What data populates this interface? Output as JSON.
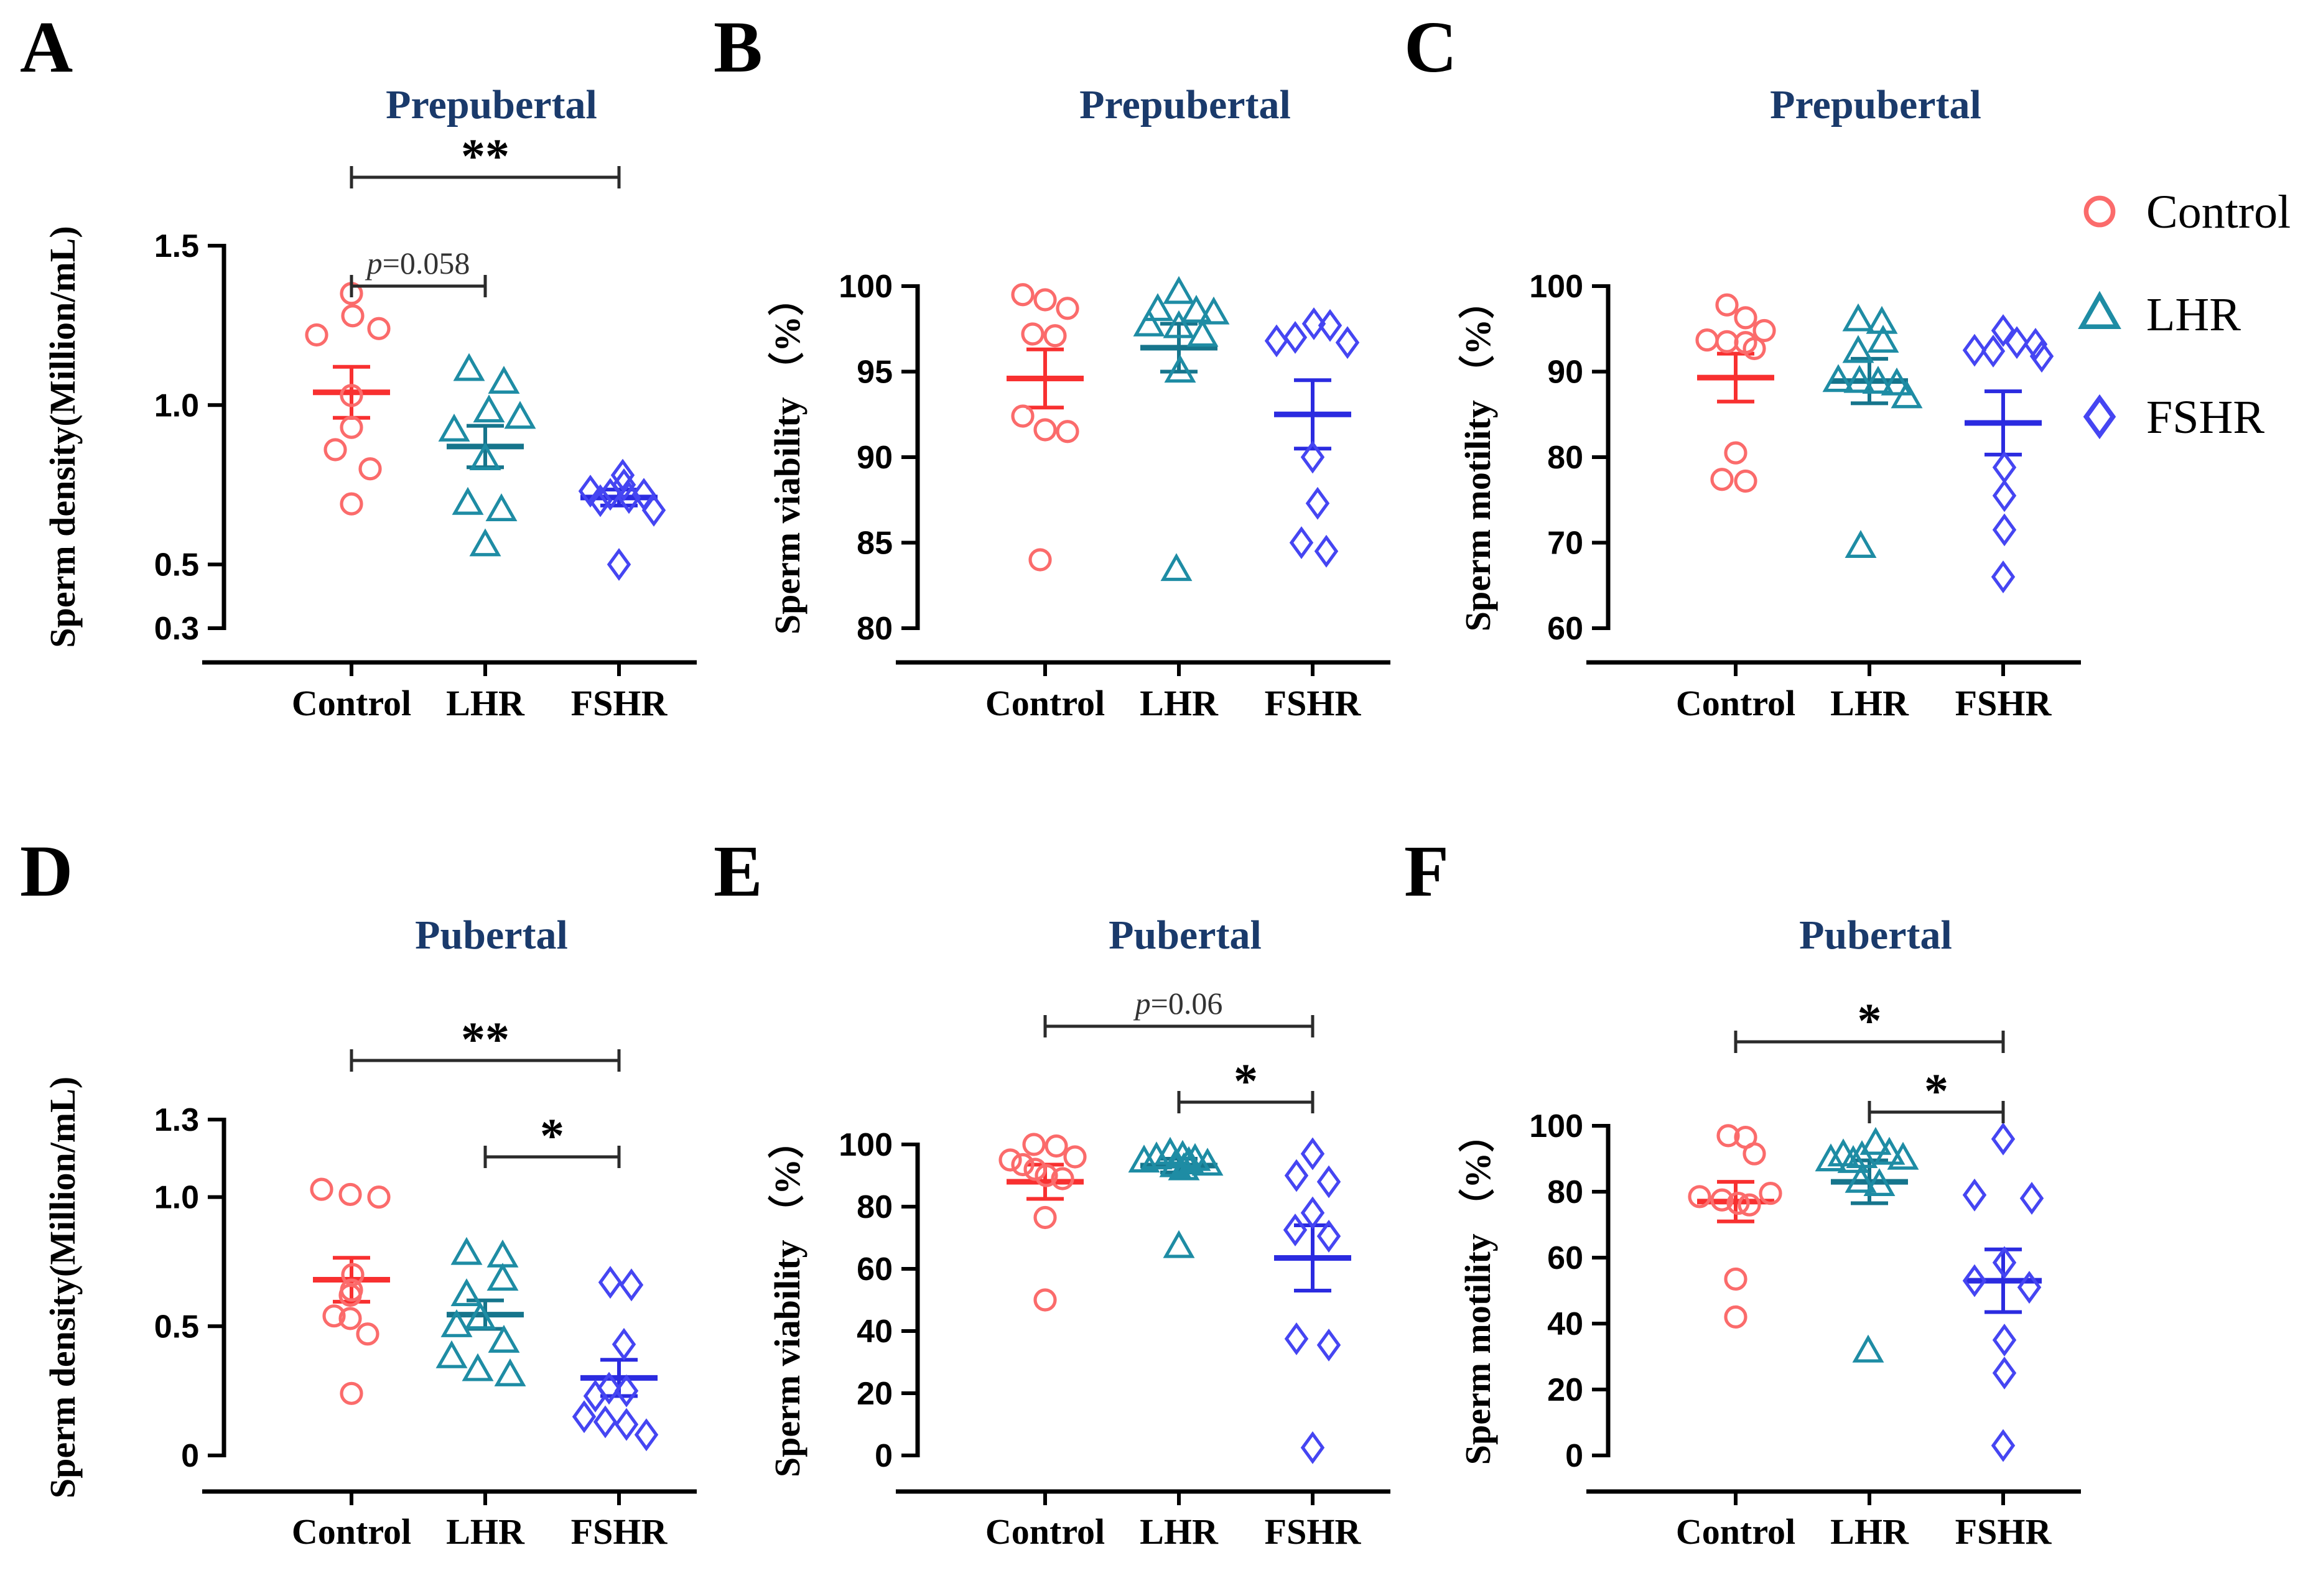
{
  "colors": {
    "control_marker": "#FB6B6B",
    "control_mean": "#F83030",
    "lhr_marker": "#1E8CA4",
    "lhr_mean": "#16758C",
    "fshr_marker": "#4545F2",
    "fshr_mean": "#2B2BE0",
    "title_navy": "#1A3A6B",
    "axis_black": "#000000",
    "bracket_gray": "#2B2B2B"
  },
  "legend": {
    "items": [
      {
        "label": "Control",
        "marker": "circle",
        "color": "#FB6B6B"
      },
      {
        "label": "LHR",
        "marker": "triangle",
        "color": "#1E8CA4"
      },
      {
        "label": "FSHR",
        "marker": "diamond",
        "color": "#4545F2"
      }
    ]
  },
  "chart_data": [
    {
      "id": "A",
      "type": "scatter",
      "panel_letter": "A",
      "title": "Prepubertal",
      "ylabel": "Sperm density(Million/mL)",
      "categories": [
        "Control",
        "LHR",
        "FSHR"
      ],
      "ylim": [
        0.3,
        1.5
      ],
      "yticks": [
        "1.5",
        "1.0",
        "0.5",
        "0.3"
      ],
      "series": [
        {
          "name": "Control",
          "marker": "circle",
          "color": "#FB6B6B",
          "mean_color": "#F83030",
          "mean": 1.04,
          "sem": 0.08,
          "points": [
            [
              1.35,
              0
            ],
            [
              1.28,
              2
            ],
            [
              1.24,
              44
            ],
            [
              1.22,
              -56
            ],
            [
              1.03,
              0
            ],
            [
              0.93,
              0
            ],
            [
              0.86,
              -26
            ],
            [
              0.8,
              30
            ],
            [
              0.69,
              0
            ]
          ]
        },
        {
          "name": "LHR",
          "marker": "triangle",
          "color": "#1E8CA4",
          "mean_color": "#16758C",
          "mean": 0.87,
          "sem": 0.065,
          "points": [
            [
              1.11,
              -26
            ],
            [
              1.07,
              30
            ],
            [
              0.98,
              6
            ],
            [
              0.96,
              56
            ],
            [
              0.92,
              -50
            ],
            [
              0.83,
              0
            ],
            [
              0.69,
              -28
            ],
            [
              0.67,
              26
            ],
            [
              0.56,
              0
            ]
          ]
        },
        {
          "name": "FSHR",
          "marker": "diamond",
          "color": "#4545F2",
          "mean_color": "#2B2BE0",
          "mean": 0.71,
          "sem": 0.025,
          "points": [
            [
              0.78,
              6
            ],
            [
              0.75,
              8
            ],
            [
              0.73,
              -46
            ],
            [
              0.72,
              -14
            ],
            [
              0.72,
              40
            ],
            [
              0.71,
              16
            ],
            [
              0.7,
              -30
            ],
            [
              0.67,
              56
            ],
            [
              0.5,
              0
            ]
          ]
        }
      ],
      "significance": [
        {
          "pair": [
            0,
            2
          ],
          "label": "**",
          "lineY": 285,
          "labelY": 277
        },
        {
          "pair": [
            0,
            1
          ],
          "label": "p=0.058",
          "lineY": 460,
          "labelY": 440
        }
      ]
    },
    {
      "id": "B",
      "type": "scatter",
      "panel_letter": "B",
      "title": "Prepubertal",
      "ylabel": "Sperm viability （%）",
      "categories": [
        "Control",
        "LHR",
        "FSHR"
      ],
      "ylim": [
        80,
        100
      ],
      "yticks": [
        "100",
        "95",
        "90",
        "85",
        "80"
      ],
      "series": [
        {
          "name": "Control",
          "marker": "circle",
          "color": "#FB6B6B",
          "mean_color": "#F83030",
          "mean": 94.6,
          "sem": 1.7,
          "points": [
            [
              99.5,
              -36
            ],
            [
              99.2,
              0
            ],
            [
              98.7,
              36
            ],
            [
              97.2,
              -20
            ],
            [
              97.1,
              16
            ],
            [
              92.4,
              -36
            ],
            [
              91.6,
              0
            ],
            [
              91.5,
              36
            ],
            [
              84.0,
              -8
            ]
          ]
        },
        {
          "name": "LHR",
          "marker": "triangle",
          "color": "#1E8CA4",
          "mean_color": "#16758C",
          "mean": 96.4,
          "sem": 1.4,
          "points": [
            [
              99.6,
              0
            ],
            [
              98.6,
              -34
            ],
            [
              98.5,
              28
            ],
            [
              98.4,
              56
            ],
            [
              97.7,
              -48
            ],
            [
              97.6,
              0
            ],
            [
              97.1,
              38
            ],
            [
              95.0,
              2
            ],
            [
              83.4,
              -4
            ]
          ]
        },
        {
          "name": "FSHR",
          "marker": "diamond",
          "color": "#4545F2",
          "mean_color": "#2B2BE0",
          "mean": 92.5,
          "sem": 2.0,
          "points": [
            [
              97.8,
              2
            ],
            [
              97.7,
              28
            ],
            [
              97.0,
              -28
            ],
            [
              96.8,
              -58
            ],
            [
              96.7,
              56
            ],
            [
              90.0,
              0
            ],
            [
              87.3,
              8
            ],
            [
              85.0,
              -18
            ],
            [
              84.5,
              22
            ]
          ]
        }
      ],
      "significance": []
    },
    {
      "id": "C",
      "type": "scatter",
      "panel_letter": "C",
      "title": "Prepubertal",
      "ylabel": "Sperm motility （%）",
      "categories": [
        "Control",
        "LHR",
        "FSHR"
      ],
      "ylim": [
        60,
        100
      ],
      "yticks": [
        "100",
        "90",
        "80",
        "70",
        "60"
      ],
      "series": [
        {
          "name": "Control",
          "marker": "circle",
          "color": "#FB6B6B",
          "mean_color": "#F83030",
          "mean": 89.3,
          "sem": 2.8,
          "points": [
            [
              97.8,
              -14
            ],
            [
              96.3,
              16
            ],
            [
              94.8,
              46
            ],
            [
              93.7,
              -46
            ],
            [
              93.5,
              -14
            ],
            [
              93.4,
              16
            ],
            [
              92.7,
              30
            ],
            [
              80.5,
              0
            ],
            [
              77.4,
              -22
            ],
            [
              77.2,
              16
            ]
          ]
        },
        {
          "name": "LHR",
          "marker": "triangle",
          "color": "#1E8CA4",
          "mean_color": "#16758C",
          "mean": 88.9,
          "sem": 2.6,
          "points": [
            [
              96.0,
              -18
            ],
            [
              95.7,
              20
            ],
            [
              93.5,
              22
            ],
            [
              92.3,
              -18
            ],
            [
              88.9,
              -50
            ],
            [
              88.8,
              -16
            ],
            [
              88.7,
              14
            ],
            [
              88.5,
              44
            ],
            [
              87.0,
              60
            ],
            [
              69.5,
              -14
            ]
          ]
        },
        {
          "name": "FSHR",
          "marker": "diamond",
          "color": "#4545F2",
          "mean_color": "#2B2BE0",
          "mean": 84.0,
          "sem": 3.7,
          "points": [
            [
              94.8,
              0
            ],
            [
              93.4,
              22
            ],
            [
              93.2,
              52
            ],
            [
              92.5,
              -46
            ],
            [
              92.4,
              -16
            ],
            [
              91.8,
              62
            ],
            [
              78.8,
              2
            ],
            [
              75.5,
              2
            ],
            [
              71.5,
              2
            ],
            [
              66.0,
              0
            ]
          ]
        }
      ],
      "significance": []
    },
    {
      "id": "D",
      "type": "scatter",
      "panel_letter": "D",
      "title": "Pubertal",
      "ylabel": "Sperm density(Million/mL)",
      "categories": [
        "Control",
        "LHR",
        "FSHR"
      ],
      "ylim": [
        0,
        1.3
      ],
      "yticks": [
        "1.3",
        "1.0",
        "0.5",
        "0"
      ],
      "series": [
        {
          "name": "Control",
          "marker": "circle",
          "color": "#FB6B6B",
          "mean_color": "#F83030",
          "mean": 0.68,
          "sem": 0.085,
          "points": [
            [
              1.03,
              -48
            ],
            [
              1.01,
              -2
            ],
            [
              1.0,
              44
            ],
            [
              0.7,
              2
            ],
            [
              0.64,
              0
            ],
            [
              0.62,
              -2
            ],
            [
              0.54,
              -28
            ],
            [
              0.53,
              -2
            ],
            [
              0.47,
              26
            ],
            [
              0.24,
              0
            ]
          ]
        },
        {
          "name": "LHR",
          "marker": "triangle",
          "color": "#1E8CA4",
          "mean_color": "#16758C",
          "mean": 0.545,
          "sem": 0.055,
          "points": [
            [
              0.78,
              -30
            ],
            [
              0.77,
              28
            ],
            [
              0.68,
              28
            ],
            [
              0.62,
              -30
            ],
            [
              0.53,
              -8
            ],
            [
              0.5,
              -46
            ],
            [
              0.44,
              30
            ],
            [
              0.38,
              -54
            ],
            [
              0.33,
              -12
            ],
            [
              0.31,
              40
            ]
          ]
        },
        {
          "name": "FSHR",
          "marker": "diamond",
          "color": "#4545F2",
          "mean_color": "#2B2BE0",
          "mean": 0.3,
          "sem": 0.07,
          "points": [
            [
              0.67,
              -14
            ],
            [
              0.66,
              20
            ],
            [
              0.43,
              8
            ],
            [
              0.26,
              -16
            ],
            [
              0.25,
              12
            ],
            [
              0.23,
              -38
            ],
            [
              0.15,
              -56
            ],
            [
              0.13,
              -22
            ],
            [
              0.12,
              12
            ],
            [
              0.08,
              44
            ]
          ]
        }
      ],
      "significance": [
        {
          "pair": [
            0,
            2
          ],
          "label": "**",
          "lineY": 375,
          "labelY": 367
        },
        {
          "pair": [
            1,
            2
          ],
          "label": "*",
          "lineY": 530,
          "labelY": 522
        }
      ]
    },
    {
      "id": "E",
      "type": "scatter",
      "panel_letter": "E",
      "title": "Pubertal",
      "ylabel": "Sperm viability （%）",
      "categories": [
        "Control",
        "LHR",
        "FSHR"
      ],
      "ylim": [
        0,
        100
      ],
      "yticks": [
        "100",
        "80",
        "60",
        "40",
        "20",
        "0"
      ],
      "series": [
        {
          "name": "Control",
          "marker": "circle",
          "color": "#FB6B6B",
          "mean_color": "#F83030",
          "mean": 88.0,
          "sem": 5.5,
          "points": [
            [
              100,
              -18
            ],
            [
              99.5,
              18
            ],
            [
              96,
              48
            ],
            [
              95,
              -56
            ],
            [
              93.5,
              -36
            ],
            [
              92,
              -16
            ],
            [
              90,
              2
            ],
            [
              89,
              28
            ],
            [
              76.5,
              0
            ],
            [
              50,
              0
            ]
          ]
        },
        {
          "name": "LHR",
          "marker": "triangle",
          "color": "#1E8CA4",
          "mean_color": "#16758C",
          "mean": 93.2,
          "sem": 2.2,
          "points": [
            [
              97,
              -14
            ],
            [
              96,
              6
            ],
            [
              95.5,
              -36
            ],
            [
              95,
              26
            ],
            [
              94.5,
              -56
            ],
            [
              94,
              16
            ],
            [
              93.5,
              46
            ],
            [
              93,
              -6
            ],
            [
              92,
              8
            ],
            [
              67,
              0
            ]
          ]
        },
        {
          "name": "FSHR",
          "marker": "diamond",
          "color": "#4545F2",
          "mean_color": "#2B2BE0",
          "mean": 63.5,
          "sem": 10.5,
          "points": [
            [
              97,
              0
            ],
            [
              90,
              -26
            ],
            [
              88,
              26
            ],
            [
              78,
              0
            ],
            [
              72.5,
              -28
            ],
            [
              70.5,
              26
            ],
            [
              37.5,
              -26
            ],
            [
              35.5,
              26
            ],
            [
              2.5,
              0
            ]
          ]
        }
      ],
      "significance": [
        {
          "pair": [
            0,
            2
          ],
          "label": "p=0.06",
          "lineY": 320,
          "labelY": 300
        },
        {
          "pair": [
            1,
            2
          ],
          "label": "*",
          "lineY": 442,
          "labelY": 434
        }
      ]
    },
    {
      "id": "F",
      "type": "scatter",
      "panel_letter": "F",
      "title": "Pubertal",
      "ylabel": "Sperm motility （%）",
      "categories": [
        "Control",
        "LHR",
        "FSHR"
      ],
      "ylim": [
        0,
        100
      ],
      "yticks": [
        "100",
        "80",
        "60",
        "40",
        "20",
        "0"
      ],
      "series": [
        {
          "name": "Control",
          "marker": "circle",
          "color": "#FB6B6B",
          "mean_color": "#F83030",
          "mean": 77.0,
          "sem": 6.0,
          "points": [
            [
              97,
              -12
            ],
            [
              96.5,
              16
            ],
            [
              91.5,
              30
            ],
            [
              79.5,
              56
            ],
            [
              78.5,
              -58
            ],
            [
              77.5,
              -22
            ],
            [
              76.5,
              4
            ],
            [
              76,
              22
            ],
            [
              53.5,
              0
            ],
            [
              42,
              0
            ]
          ]
        },
        {
          "name": "LHR",
          "marker": "triangle",
          "color": "#1E8CA4",
          "mean_color": "#16758C",
          "mean": 83.0,
          "sem": 6.5,
          "points": [
            [
              94.5,
              10
            ],
            [
              91.5,
              32
            ],
            [
              91,
              -42
            ],
            [
              90.5,
              -12
            ],
            [
              90,
              54
            ],
            [
              89.5,
              -62
            ],
            [
              89,
              -26
            ],
            [
              83,
              -14
            ],
            [
              82,
              16
            ],
            [
              31.5,
              -2
            ]
          ]
        },
        {
          "name": "FSHR",
          "marker": "diamond",
          "color": "#4545F2",
          "mean_color": "#2B2BE0",
          "mean": 53.0,
          "sem": 9.5,
          "points": [
            [
              96,
              0
            ],
            [
              79,
              -46
            ],
            [
              78,
              46
            ],
            [
              58.5,
              2
            ],
            [
              53,
              -46
            ],
            [
              51,
              42
            ],
            [
              35,
              2
            ],
            [
              25,
              2
            ],
            [
              3,
              0
            ]
          ]
        }
      ],
      "significance": [
        {
          "pair": [
            0,
            2
          ],
          "label": "*",
          "lineY": 345,
          "labelY": 337
        },
        {
          "pair": [
            1,
            2
          ],
          "label": "*",
          "lineY": 458,
          "labelY": 450
        }
      ]
    }
  ]
}
